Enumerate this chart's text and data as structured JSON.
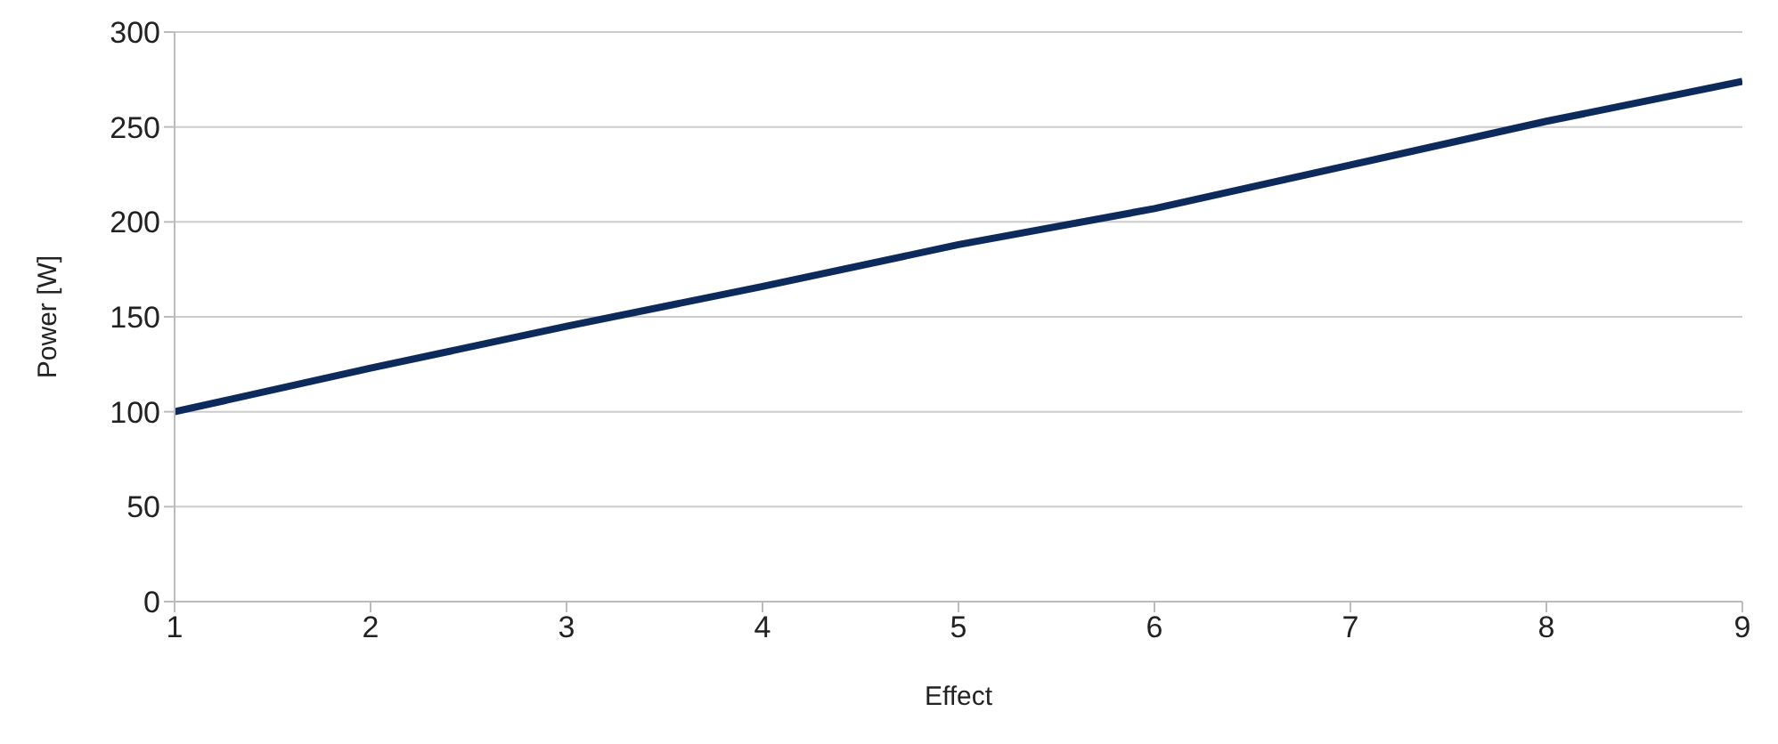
{
  "chart_data": {
    "type": "line",
    "xlabel": "Effect",
    "ylabel": "Power [W]",
    "x": [
      1,
      2,
      3,
      4,
      5,
      6,
      7,
      8,
      9
    ],
    "series": [
      {
        "color": "#0d2a5c",
        "values": [
          100,
          123,
          145,
          166,
          188,
          207,
          230,
          253,
          274
        ]
      }
    ],
    "xlim": [
      1,
      9
    ],
    "xticks": [
      1,
      2,
      3,
      4,
      5,
      6,
      7,
      8,
      9
    ],
    "ylim": [
      0,
      300
    ],
    "yticks": [
      0,
      50,
      100,
      150,
      200,
      250,
      300
    ],
    "grid": "y",
    "marker": "none",
    "line_style": "solid"
  }
}
